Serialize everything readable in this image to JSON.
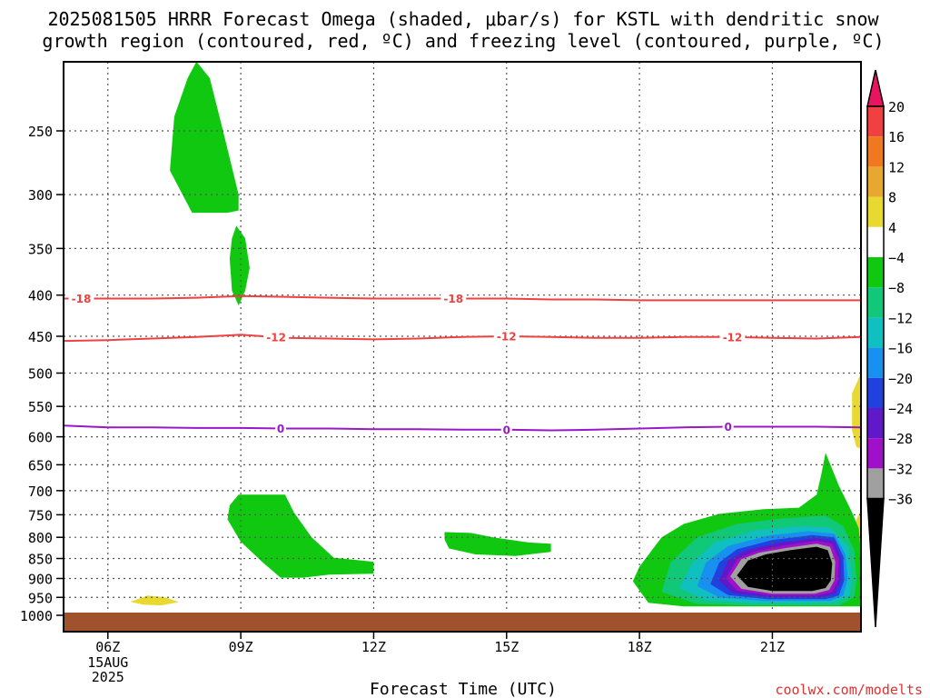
{
  "title_line1": "2025081505 HRRR Forecast Omega (shaded, μbar/s) for KSTL with dendritic snow",
  "title_line2": "growth region (contoured, red, ºC) and freezing level (contoured, purple, ºC)",
  "credit": "coolwx.com/modelts",
  "chart_data": {
    "type": "time-height",
    "xlabel": "Forecast Time (UTC)",
    "x_ticks": [
      {
        "x": 6,
        "label": "06Z",
        "sub": [
          "15AUG",
          "2025"
        ]
      },
      {
        "x": 9,
        "label": "09Z"
      },
      {
        "x": 12,
        "label": "12Z"
      },
      {
        "x": 15,
        "label": "15Z"
      },
      {
        "x": 18,
        "label": "18Z"
      },
      {
        "x": 21,
        "label": "21Z"
      }
    ],
    "xlim": [
      5.0,
      23.0
    ],
    "y_ticks": [
      250,
      300,
      350,
      400,
      450,
      500,
      550,
      600,
      650,
      700,
      750,
      800,
      850,
      900,
      950,
      1000
    ],
    "ylim": [
      200,
      1000
    ],
    "ground_color": "#a0522d",
    "colorbar": {
      "labels": [
        "20",
        "16",
        "12",
        "8",
        "4",
        "−4",
        "−8",
        "−12",
        "−16",
        "−20",
        "−24",
        "−28",
        "−32",
        "−36"
      ],
      "colors": [
        "#e8145f",
        "#f04040",
        "#f07820",
        "#e8a830",
        "#e8d830",
        "#ffffff",
        "#10c810",
        "#10c878",
        "#10c0c0",
        "#1890f0",
        "#2040e0",
        "#6018c8",
        "#a010c8",
        "#a0a0a0",
        "#000000"
      ]
    },
    "contours": [
      {
        "name": "dgz_-18",
        "color": "#f04040",
        "label": "-18",
        "points": [
          [
            5,
            404
          ],
          [
            6,
            404
          ],
          [
            7,
            404
          ],
          [
            8,
            403
          ],
          [
            9,
            401
          ],
          [
            10,
            402
          ],
          [
            11,
            403
          ],
          [
            12,
            404
          ],
          [
            13,
            404
          ],
          [
            14,
            404
          ],
          [
            15,
            404
          ],
          [
            16,
            405
          ],
          [
            17,
            405
          ],
          [
            18,
            406
          ],
          [
            19,
            406
          ],
          [
            20,
            406
          ],
          [
            21,
            406
          ],
          [
            22,
            406
          ],
          [
            23,
            406
          ]
        ],
        "label_x": [
          5.4,
          13.8
        ]
      },
      {
        "name": "dgz_-12",
        "color": "#f04040",
        "label": "-12",
        "points": [
          [
            5,
            456
          ],
          [
            6,
            455
          ],
          [
            7,
            453
          ],
          [
            8,
            451
          ],
          [
            9,
            448
          ],
          [
            10,
            452
          ],
          [
            11,
            453
          ],
          [
            12,
            454
          ],
          [
            13,
            453
          ],
          [
            14,
            451
          ],
          [
            15,
            450
          ],
          [
            16,
            451
          ],
          [
            17,
            452
          ],
          [
            18,
            452
          ],
          [
            19,
            451
          ],
          [
            20,
            451
          ],
          [
            21,
            452
          ],
          [
            22,
            453
          ],
          [
            23,
            451
          ]
        ],
        "label_x": [
          9.8,
          15.0,
          20.1
        ]
      },
      {
        "name": "freezing_level",
        "color": "#9a18c8",
        "label": "0",
        "points": [
          [
            5,
            581
          ],
          [
            6,
            584
          ],
          [
            7,
            584
          ],
          [
            8,
            585
          ],
          [
            9,
            585
          ],
          [
            10,
            586
          ],
          [
            11,
            586
          ],
          [
            12,
            587
          ],
          [
            13,
            587
          ],
          [
            14,
            588
          ],
          [
            15,
            588
          ],
          [
            16,
            589
          ],
          [
            17,
            588
          ],
          [
            18,
            586
          ],
          [
            19,
            584
          ],
          [
            20,
            583
          ],
          [
            21,
            583
          ],
          [
            22,
            583
          ],
          [
            23,
            584
          ]
        ],
        "label_x": [
          9.9,
          15.0,
          20.0
        ]
      }
    ],
    "shaded_regions": [
      {
        "name": "omega_-4_upper",
        "value": -4,
        "color": "#10c810",
        "points": [
          [
            8.0,
            205
          ],
          [
            8.3,
            215
          ],
          [
            8.6,
            250
          ],
          [
            8.95,
            300
          ],
          [
            8.95,
            314
          ],
          [
            8.7,
            316
          ],
          [
            7.9,
            316
          ],
          [
            7.4,
            280
          ],
          [
            7.5,
            240
          ],
          [
            7.8,
            215
          ]
        ]
      },
      {
        "name": "omega_-4_mid",
        "value": -4,
        "color": "#10c810",
        "points": [
          [
            8.9,
            328
          ],
          [
            9.1,
            340
          ],
          [
            9.2,
            370
          ],
          [
            9.1,
            395
          ],
          [
            8.95,
            412
          ],
          [
            8.8,
            395
          ],
          [
            8.75,
            360
          ],
          [
            8.8,
            340
          ]
        ]
      },
      {
        "name": "omega_-4_low1",
        "value": -4,
        "color": "#10c810",
        "points": [
          [
            8.95,
            708
          ],
          [
            10.0,
            708
          ],
          [
            10.2,
            745
          ],
          [
            10.6,
            800
          ],
          [
            11.1,
            848
          ],
          [
            12.0,
            858
          ],
          [
            12.0,
            888
          ],
          [
            11.0,
            890
          ],
          [
            10.4,
            898
          ],
          [
            9.9,
            898
          ],
          [
            9.5,
            860
          ],
          [
            9.0,
            810
          ],
          [
            8.7,
            760
          ],
          [
            8.75,
            730
          ]
        ]
      },
      {
        "name": "omega_-4_low2",
        "value": -4,
        "color": "#10c810",
        "points": [
          [
            13.6,
            788
          ],
          [
            14.2,
            790
          ],
          [
            14.7,
            800
          ],
          [
            15.5,
            812
          ],
          [
            16.0,
            815
          ],
          [
            16.0,
            834
          ],
          [
            15.2,
            844
          ],
          [
            14.3,
            840
          ],
          [
            13.7,
            826
          ],
          [
            13.6,
            805
          ]
        ]
      },
      {
        "name": "omega_4_surface",
        "value": 4,
        "color": "#e8d830",
        "points": [
          [
            6.5,
            962
          ],
          [
            6.9,
            945
          ],
          [
            7.3,
            950
          ],
          [
            7.6,
            963
          ],
          [
            7.2,
            972
          ],
          [
            6.8,
            970
          ]
        ]
      },
      {
        "name": "omega_4_edge",
        "value": 4,
        "color": "#e8d830",
        "points": [
          [
            23.0,
            500
          ],
          [
            22.8,
            530
          ],
          [
            22.8,
            590
          ],
          [
            22.9,
            618
          ],
          [
            23.0,
            620
          ]
        ]
      },
      {
        "name": "omega_4_edge2",
        "value": 4,
        "color": "#e8d830",
        "points": [
          [
            23.0,
            740
          ],
          [
            22.85,
            770
          ],
          [
            22.8,
            800
          ],
          [
            22.85,
            840
          ],
          [
            23.0,
            860
          ]
        ]
      },
      {
        "name": "omega_-4_main",
        "value": -4,
        "color": "#10c810",
        "points": [
          [
            17.85,
            907
          ],
          [
            18.0,
            870
          ],
          [
            18.5,
            800
          ],
          [
            19.0,
            770
          ],
          [
            19.8,
            748
          ],
          [
            20.8,
            738
          ],
          [
            21.6,
            735
          ],
          [
            22.0,
            708
          ],
          [
            22.1,
            670
          ],
          [
            22.2,
            628
          ],
          [
            22.5,
            690
          ],
          [
            22.8,
            745
          ],
          [
            22.95,
            780
          ],
          [
            23.0,
            840
          ],
          [
            23.0,
            975
          ],
          [
            20.0,
            975
          ],
          [
            19.0,
            975
          ],
          [
            18.2,
            965
          ]
        ]
      },
      {
        "name": "omega_-8",
        "value": -8,
        "color": "#10c878",
        "points": [
          [
            18.5,
            935
          ],
          [
            18.7,
            860
          ],
          [
            19.3,
            800
          ],
          [
            20.2,
            770
          ],
          [
            21.2,
            758
          ],
          [
            22.2,
            752
          ],
          [
            22.6,
            775
          ],
          [
            22.85,
            830
          ],
          [
            22.9,
            905
          ],
          [
            22.85,
            950
          ],
          [
            22.5,
            972
          ],
          [
            20.5,
            972
          ],
          [
            19.3,
            968
          ]
        ]
      },
      {
        "name": "omega_-12",
        "value": -12,
        "color": "#10c0c0",
        "points": [
          [
            18.9,
            925
          ],
          [
            19.2,
            860
          ],
          [
            19.7,
            812
          ],
          [
            20.6,
            785
          ],
          [
            21.6,
            775
          ],
          [
            22.3,
            778
          ],
          [
            22.7,
            820
          ],
          [
            22.8,
            890
          ],
          [
            22.75,
            945
          ],
          [
            22.4,
            965
          ],
          [
            20.6,
            966
          ],
          [
            19.5,
            958
          ]
        ]
      },
      {
        "name": "omega_-16",
        "value": -16,
        "color": "#1890f0",
        "points": [
          [
            19.3,
            920
          ],
          [
            19.5,
            860
          ],
          [
            20.0,
            820
          ],
          [
            20.9,
            796
          ],
          [
            21.8,
            786
          ],
          [
            22.4,
            792
          ],
          [
            22.65,
            840
          ],
          [
            22.7,
            900
          ],
          [
            22.6,
            945
          ],
          [
            22.3,
            960
          ],
          [
            20.8,
            960
          ],
          [
            19.8,
            950
          ]
        ]
      },
      {
        "name": "omega_-20",
        "value": -20,
        "color": "#2040e0",
        "points": [
          [
            19.6,
            915
          ],
          [
            19.8,
            860
          ],
          [
            20.2,
            828
          ],
          [
            21.0,
            806
          ],
          [
            21.9,
            795
          ],
          [
            22.4,
            800
          ],
          [
            22.6,
            845
          ],
          [
            22.62,
            905
          ],
          [
            22.5,
            945
          ],
          [
            22.2,
            955
          ],
          [
            20.9,
            955
          ],
          [
            20.0,
            944
          ]
        ]
      },
      {
        "name": "omega_-24",
        "value": -24,
        "color": "#6018c8",
        "points": [
          [
            19.8,
            905
          ],
          [
            20.0,
            855
          ],
          [
            20.4,
            830
          ],
          [
            21.2,
            812
          ],
          [
            22.0,
            802
          ],
          [
            22.4,
            808
          ],
          [
            22.55,
            850
          ],
          [
            22.55,
            905
          ],
          [
            22.42,
            940
          ],
          [
            22.1,
            950
          ],
          [
            21.0,
            950
          ],
          [
            20.1,
            938
          ]
        ]
      },
      {
        "name": "omega_-28",
        "value": -28,
        "color": "#a010c8",
        "points": [
          [
            19.95,
            900
          ],
          [
            20.2,
            852
          ],
          [
            20.6,
            833
          ],
          [
            21.3,
            818
          ],
          [
            22.0,
            808
          ],
          [
            22.35,
            815
          ],
          [
            22.5,
            855
          ],
          [
            22.48,
            905
          ],
          [
            22.35,
            936
          ],
          [
            22.0,
            945
          ],
          [
            21.0,
            945
          ],
          [
            20.2,
            932
          ]
        ]
      },
      {
        "name": "omega_-32",
        "value": -32,
        "color": "#a0a0a0",
        "points": [
          [
            20.05,
            895
          ],
          [
            20.3,
            852
          ],
          [
            20.7,
            836
          ],
          [
            21.35,
            824
          ],
          [
            22.0,
            815
          ],
          [
            22.3,
            822
          ],
          [
            22.42,
            858
          ],
          [
            22.4,
            905
          ],
          [
            22.28,
            930
          ],
          [
            21.95,
            940
          ],
          [
            21.0,
            940
          ],
          [
            20.3,
            927
          ]
        ]
      },
      {
        "name": "omega_-36",
        "value": -36,
        "color": "#000000",
        "points": [
          [
            20.2,
            892
          ],
          [
            20.45,
            855
          ],
          [
            20.85,
            840
          ],
          [
            21.4,
            830
          ],
          [
            22.0,
            822
          ],
          [
            22.25,
            830
          ],
          [
            22.35,
            862
          ],
          [
            22.32,
            905
          ],
          [
            22.2,
            925
          ],
          [
            21.9,
            933
          ],
          [
            21.0,
            933
          ],
          [
            20.45,
            922
          ]
        ]
      }
    ]
  }
}
